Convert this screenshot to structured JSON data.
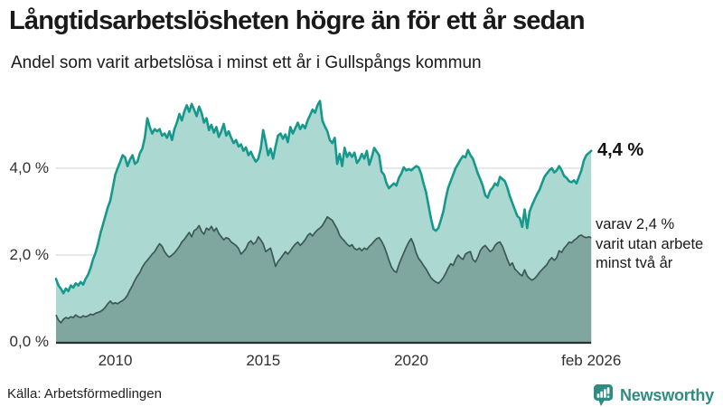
{
  "header": {
    "title": "Långtidsarbetslösheten högre än för ett år sedan",
    "subtitle": "Andel som varit arbetslösa i minst ett år i Gullspångs kommun"
  },
  "chart_data": {
    "type": "area",
    "title": "Långtidsarbetslösheten högre än för ett år sedan",
    "subtitle": "Andel som varit arbetslösa i minst ett år i Gullspångs kommun",
    "unit": "%",
    "x_start_year": 2008.0,
    "x_step_years": 0.0833333,
    "ylim": [
      0,
      5.9
    ],
    "grid": true,
    "colors": {
      "upper_line": "#17988c",
      "upper_fill": "#abd8d1",
      "lower_line": "#3c5953",
      "lower_fill": "#7fa69f",
      "gridline": "#dcdcdc",
      "baseline": "#2e2e2e"
    },
    "y_ticks": [
      {
        "label": "0,0 %",
        "value": 0
      },
      {
        "label": "2,0 %",
        "value": 2
      },
      {
        "label": "4,0 %",
        "value": 4
      }
    ],
    "x_ticks": [
      {
        "label": "2010",
        "value": 2010.0
      },
      {
        "label": "2015",
        "value": 2015.0
      },
      {
        "label": "2020",
        "value": 2020.0
      },
      {
        "label": "feb 2026",
        "value": 2026.083
      }
    ],
    "series": [
      {
        "name": "Arbetslösa minst ett år",
        "values": [
          1.45,
          1.3,
          1.22,
          1.12,
          1.23,
          1.17,
          1.3,
          1.25,
          1.35,
          1.3,
          1.38,
          1.32,
          1.45,
          1.55,
          1.7,
          1.9,
          2.05,
          2.25,
          2.5,
          2.7,
          2.9,
          3.1,
          3.25,
          3.55,
          3.85,
          4.0,
          4.15,
          4.3,
          4.25,
          4.05,
          4.2,
          4.3,
          4.1,
          4.15,
          4.35,
          4.45,
          4.7,
          5.15,
          4.95,
          4.8,
          4.9,
          4.85,
          4.9,
          4.75,
          4.8,
          4.7,
          4.85,
          4.65,
          4.9,
          5.05,
          5.25,
          5.1,
          5.3,
          5.45,
          5.3,
          5.48,
          5.35,
          5.2,
          5.42,
          5.28,
          5.05,
          5.15,
          4.88,
          5.0,
          4.82,
          4.95,
          4.72,
          4.85,
          5.02,
          4.75,
          4.85,
          4.7,
          4.58,
          4.65,
          4.5,
          4.55,
          4.4,
          4.48,
          4.3,
          4.38,
          4.25,
          4.15,
          4.22,
          4.45,
          4.88,
          4.6,
          4.3,
          4.45,
          4.22,
          4.5,
          4.75,
          4.8,
          4.68,
          4.78,
          4.6,
          4.95,
          4.8,
          4.92,
          5.05,
          4.9,
          5.0,
          4.92,
          5.1,
          5.22,
          5.35,
          5.28,
          5.45,
          5.55,
          5.1,
          4.96,
          4.85,
          4.65,
          4.58,
          4.7,
          4.1,
          4.33,
          4.05,
          4.47,
          4.26,
          4.36,
          4.26,
          4.36,
          4.12,
          4.2,
          4.33,
          4.22,
          4.4,
          4.08,
          4.25,
          4.47,
          4.38,
          4.3,
          3.92,
          3.85,
          3.65,
          3.54,
          3.6,
          3.65,
          3.6,
          3.78,
          3.88,
          4.02,
          3.95,
          3.98,
          3.95,
          4.0,
          4.05,
          4.02,
          3.88,
          3.65,
          3.45,
          3.15,
          2.85,
          2.6,
          2.56,
          2.62,
          2.8,
          3.0,
          3.3,
          3.55,
          3.7,
          3.85,
          4.0,
          4.1,
          4.2,
          4.28,
          4.25,
          4.42,
          4.3,
          4.22,
          4.05,
          3.88,
          3.75,
          3.6,
          3.38,
          3.32,
          3.48,
          3.55,
          3.65,
          3.6,
          3.8,
          3.75,
          3.7,
          3.55,
          3.35,
          3.2,
          3.05,
          2.9,
          2.85,
          2.65,
          3.05,
          2.62,
          3.0,
          3.15,
          3.28,
          3.4,
          3.5,
          3.65,
          3.8,
          3.88,
          3.95,
          4.0,
          3.9,
          3.95,
          4.05,
          3.95,
          3.82,
          3.78,
          3.7,
          3.68,
          3.72,
          3.65,
          3.8,
          3.95,
          4.18,
          4.3,
          4.35,
          4.4
        ]
      },
      {
        "name": "Arbetslösa minst två år",
        "values": [
          0.62,
          0.5,
          0.44,
          0.52,
          0.56,
          0.54,
          0.58,
          0.56,
          0.62,
          0.58,
          0.56,
          0.6,
          0.58,
          0.6,
          0.64,
          0.62,
          0.66,
          0.68,
          0.7,
          0.74,
          0.8,
          0.88,
          0.94,
          0.88,
          0.9,
          0.88,
          0.92,
          0.95,
          1.0,
          1.08,
          1.2,
          1.3,
          1.42,
          1.52,
          1.6,
          1.72,
          1.81,
          1.88,
          1.95,
          2.02,
          2.08,
          2.18,
          2.26,
          2.2,
          2.08,
          2.0,
          1.95,
          2.0,
          2.05,
          2.12,
          2.2,
          2.3,
          2.36,
          2.44,
          2.52,
          2.42,
          2.56,
          2.6,
          2.68,
          2.55,
          2.48,
          2.62,
          2.58,
          2.66,
          2.55,
          2.62,
          2.5,
          2.42,
          2.35,
          2.4,
          2.38,
          2.3,
          2.26,
          2.22,
          2.15,
          2.02,
          2.08,
          2.15,
          2.28,
          2.33,
          2.25,
          2.3,
          2.42,
          2.35,
          2.26,
          2.08,
          2.12,
          2.16,
          1.95,
          1.74,
          1.85,
          1.92,
          2.0,
          2.08,
          2.02,
          2.1,
          2.18,
          2.25,
          2.3,
          2.22,
          2.28,
          2.35,
          2.45,
          2.5,
          2.44,
          2.52,
          2.58,
          2.62,
          2.68,
          2.78,
          2.88,
          2.84,
          2.8,
          2.7,
          2.6,
          2.45,
          2.38,
          2.32,
          2.25,
          2.2,
          2.24,
          2.15,
          2.12,
          2.16,
          2.1,
          2.16,
          2.13,
          2.2,
          2.25,
          2.32,
          2.38,
          2.4,
          2.32,
          2.2,
          2.05,
          1.88,
          1.72,
          1.64,
          1.6,
          1.78,
          1.92,
          2.05,
          2.18,
          2.3,
          2.38,
          2.25,
          2.05,
          1.92,
          1.85,
          1.76,
          1.68,
          1.58,
          1.48,
          1.42,
          1.38,
          1.35,
          1.4,
          1.48,
          1.58,
          1.7,
          1.8,
          1.76,
          1.9,
          2.0,
          1.94,
          1.9,
          2.02,
          2.06,
          2.08,
          1.9,
          1.84,
          1.95,
          2.1,
          2.18,
          2.22,
          2.15,
          2.08,
          2.12,
          2.22,
          2.28,
          2.3,
          2.2,
          2.05,
          1.9,
          1.76,
          1.82,
          1.68,
          1.62,
          1.56,
          1.52,
          1.66,
          1.52,
          1.46,
          1.42,
          1.46,
          1.52,
          1.6,
          1.66,
          1.72,
          1.78,
          1.88,
          1.94,
          1.88,
          1.94,
          2.1,
          2.06,
          2.16,
          2.22,
          2.3,
          2.28,
          2.34,
          2.38,
          2.44,
          2.46,
          2.42,
          2.4,
          2.42,
          2.4
        ]
      }
    ],
    "annotations": {
      "end_value_label": "4,4 %",
      "sub_label_lines": [
        "varav 2,4 %",
        "varit utan arbete",
        "minst två år"
      ]
    }
  },
  "footer": {
    "source": "Källa: Arbetsförmedlingen",
    "brand": "Newsworthy",
    "brand_color": "#2f8c82"
  }
}
